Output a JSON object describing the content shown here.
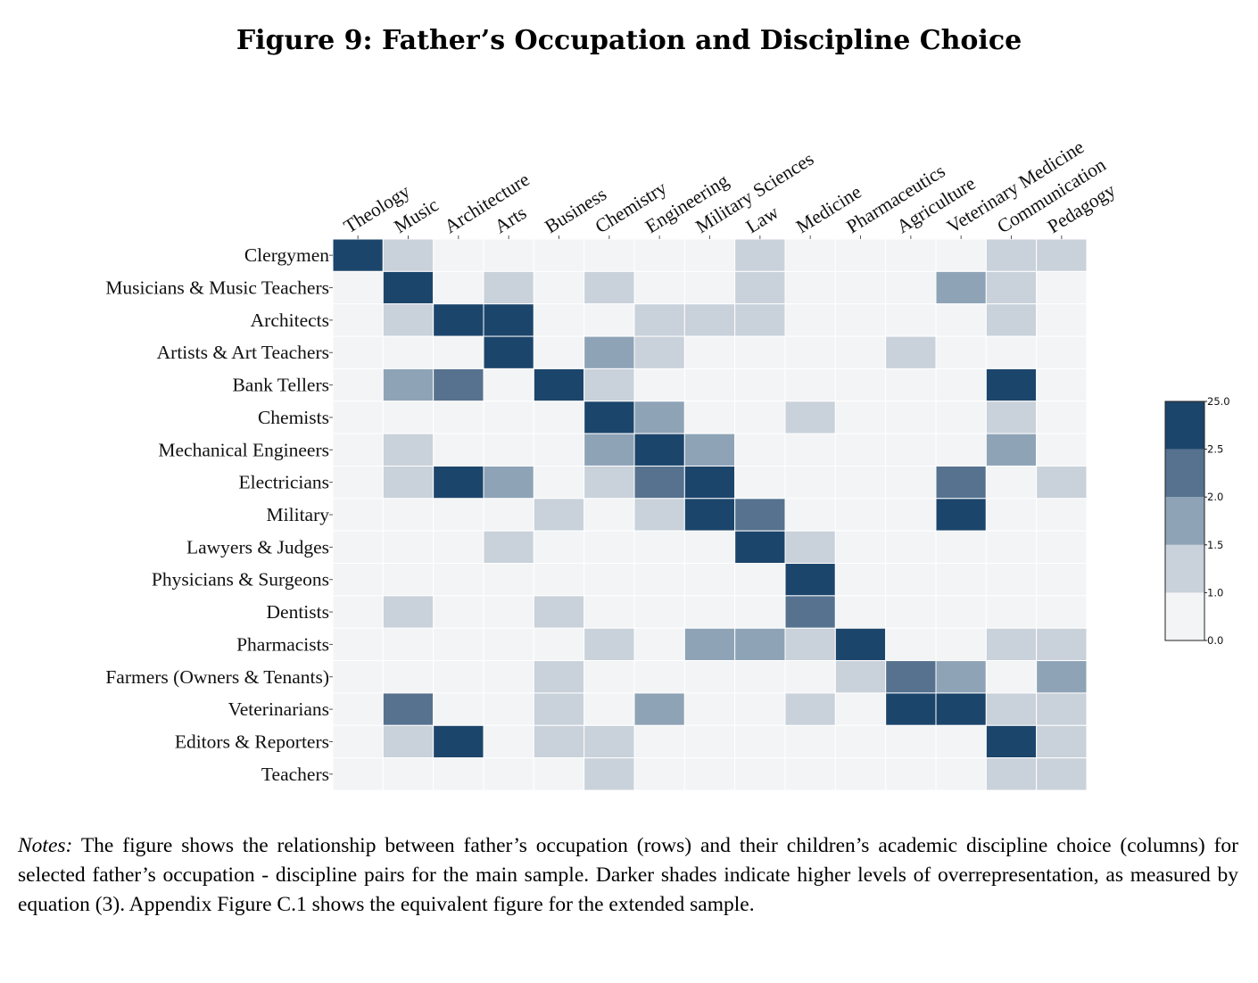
{
  "chart_data": {
    "type": "heatmap",
    "title": "Figure 9: Father’s Occupation and Discipline Choice",
    "xlabel": "",
    "ylabel": "",
    "columns": [
      "Theology",
      "Music",
      "Architecture",
      "Arts",
      "Business",
      "Chemistry",
      "Engineering",
      "Military Sciences",
      "Law",
      "Medicine",
      "Pharmaceutics",
      "Agriculture",
      "Veterinary Medicine",
      "Communication",
      "Pedagogy"
    ],
    "rows": [
      "Clergymen",
      "Musicians & Music Teachers",
      "Architects",
      "Artists & Art Teachers",
      "Bank Tellers",
      "Chemists",
      "Mechanical Engineers",
      "Electricians",
      "Military",
      "Lawyers & Judges",
      "Physicians & Surgeons",
      "Dentists",
      "Pharmacists",
      "Farmers (Owners & Tenants)",
      "Veterinarians",
      "Editors & Reporters",
      "Teachers"
    ],
    "value_bins": [
      [
        0.0,
        1.0
      ],
      [
        1.0,
        1.5
      ],
      [
        1.5,
        2.0
      ],
      [
        2.0,
        2.5
      ],
      [
        2.5,
        25.0
      ]
    ],
    "bin_index_matrix": [
      [
        4,
        1,
        0,
        0,
        0,
        0,
        0,
        0,
        1,
        0,
        0,
        0,
        0,
        1,
        1
      ],
      [
        0,
        4,
        0,
        1,
        0,
        1,
        0,
        0,
        1,
        0,
        0,
        0,
        2,
        1,
        0
      ],
      [
        0,
        1,
        4,
        4,
        0,
        0,
        1,
        1,
        1,
        0,
        0,
        0,
        0,
        1,
        0
      ],
      [
        0,
        0,
        0,
        4,
        0,
        2,
        1,
        0,
        0,
        0,
        0,
        1,
        0,
        0,
        0
      ],
      [
        0,
        2,
        3,
        0,
        4,
        1,
        0,
        0,
        0,
        0,
        0,
        0,
        0,
        4,
        0
      ],
      [
        0,
        0,
        0,
        0,
        0,
        4,
        2,
        0,
        0,
        1,
        0,
        0,
        0,
        1,
        0
      ],
      [
        0,
        1,
        0,
        0,
        0,
        2,
        4,
        2,
        0,
        0,
        0,
        0,
        0,
        2,
        0
      ],
      [
        0,
        1,
        4,
        2,
        0,
        1,
        3,
        4,
        0,
        0,
        0,
        0,
        3,
        0,
        1
      ],
      [
        0,
        0,
        0,
        0,
        1,
        0,
        1,
        4,
        3,
        0,
        0,
        0,
        4,
        0,
        0
      ],
      [
        0,
        0,
        0,
        1,
        0,
        0,
        0,
        0,
        4,
        1,
        0,
        0,
        0,
        0,
        0
      ],
      [
        0,
        0,
        0,
        0,
        0,
        0,
        0,
        0,
        0,
        4,
        0,
        0,
        0,
        0,
        0
      ],
      [
        0,
        1,
        0,
        0,
        1,
        0,
        0,
        0,
        0,
        3,
        0,
        0,
        0,
        0,
        0
      ],
      [
        0,
        0,
        0,
        0,
        0,
        1,
        0,
        2,
        2,
        1,
        4,
        0,
        0,
        1,
        1
      ],
      [
        0,
        0,
        0,
        0,
        1,
        0,
        0,
        0,
        0,
        0,
        1,
        3,
        2,
        0,
        2
      ],
      [
        0,
        3,
        0,
        0,
        1,
        0,
        2,
        0,
        0,
        1,
        0,
        4,
        4,
        1,
        1
      ],
      [
        0,
        1,
        4,
        0,
        1,
        1,
        0,
        0,
        0,
        0,
        0,
        0,
        0,
        4,
        1
      ],
      [
        0,
        0,
        0,
        0,
        0,
        1,
        0,
        0,
        0,
        0,
        0,
        0,
        0,
        1,
        1
      ]
    ],
    "colorbar": {
      "ticks": [
        "25.0",
        "2.5",
        "2.0",
        "1.5",
        "1.0",
        "0.0"
      ],
      "colors": [
        "#f3f4f6",
        "#c9d1da",
        "#8ea3b6",
        "#56728f",
        "#1c456b"
      ]
    },
    "grid": false,
    "legend_placement": "right"
  },
  "notes": {
    "label": "Notes:",
    "text": " The figure shows the relationship between father’s occupation (rows) and their children’s academic discipline choice (columns) for selected father’s occupation - discipline pairs for the main sample. Darker shades indicate higher levels of overrepresentation, as measured by equation (3). Appendix Figure C.1 shows the equivalent figure for the extended sample."
  }
}
